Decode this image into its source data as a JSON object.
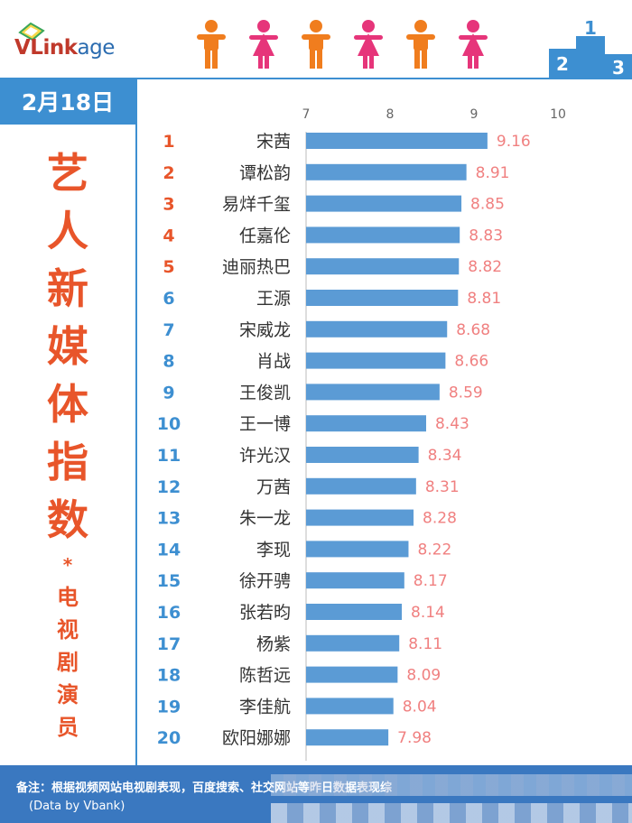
{
  "header": {
    "logo_main": "VLink",
    "logo_suffix": "age",
    "podium_labels": [
      "2",
      "1",
      "3"
    ]
  },
  "sidebar": {
    "date": "2月18日",
    "title_chars": [
      "艺",
      "人",
      "新",
      "媒",
      "体",
      "指",
      "数"
    ],
    "star": "*",
    "subtitle_chars": [
      "电",
      "视",
      "剧",
      "演",
      "员"
    ]
  },
  "colors": {
    "accent_blue": "#3d8fd1",
    "bar_blue": "#5b9bd5",
    "rank_orange": "#e8552a",
    "rank_blue": "#3d8fd1",
    "value_pink": "#f08080",
    "male_icon": "#f07d1e",
    "female_icon": "#e6357a"
  },
  "chart_data": {
    "type": "bar",
    "orientation": "horizontal",
    "xlim": [
      7,
      10
    ],
    "xticks": [
      7,
      8,
      9,
      10
    ],
    "ranks": [
      1,
      2,
      3,
      4,
      5,
      6,
      7,
      8,
      9,
      10,
      11,
      12,
      13,
      14,
      15,
      16,
      17,
      18,
      19,
      20
    ],
    "categories": [
      "宋茜",
      "谭松韵",
      "易烊千玺",
      "任嘉伦",
      "迪丽热巴",
      "王源",
      "宋威龙",
      "肖战",
      "王俊凯",
      "王一博",
      "许光汉",
      "万茜",
      "朱一龙",
      "李现",
      "徐开骋",
      "张若昀",
      "杨紫",
      "陈哲远",
      "李佳航",
      "欧阳娜娜"
    ],
    "values": [
      9.16,
      8.91,
      8.85,
      8.83,
      8.82,
      8.81,
      8.68,
      8.66,
      8.59,
      8.43,
      8.34,
      8.31,
      8.28,
      8.22,
      8.17,
      8.14,
      8.11,
      8.09,
      8.04,
      7.98
    ],
    "value_labels": [
      "9.16",
      "8.91",
      "8.85",
      "8.83",
      "8.82",
      "8.81",
      "8.68",
      "8.66",
      "8.59",
      "8.43",
      "8.34",
      "8.31",
      "8.28",
      "8.22",
      "8.17",
      "8.14",
      "8.11",
      "8.09",
      "8.04",
      "7.98"
    ],
    "grid": false
  },
  "footer": {
    "note": "备注：根据视频网站电视剧表现，百度搜索、社交网站等昨日数据表现综",
    "credit": "(Data by Vbank)"
  }
}
